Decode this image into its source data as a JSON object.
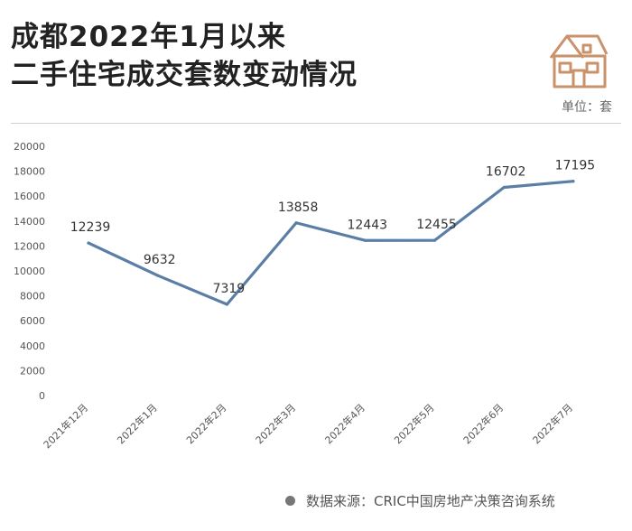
{
  "title_line1": "成都2022年1月以来",
  "title_line2": "二手住宅成交套数变动情况",
  "unit_label": "单位：套",
  "source_label": "数据来源：CRIC中国房地产决策咨询系统",
  "colors": {
    "line": "#5b7ea6",
    "logo": "#c9926a"
  },
  "chart_data": {
    "type": "line",
    "title": "成都2022年1月以来二手住宅成交套数变动情况",
    "unit": "单位：套",
    "categories": [
      "2021年12月",
      "2022年1月",
      "2022年2月",
      "2022年3月",
      "2022年4月",
      "2022年5月",
      "2022年6月",
      "2022年7月"
    ],
    "series": [
      {
        "values": [
          12239,
          9632,
          7319,
          13858,
          12443,
          12455,
          16702,
          17195
        ]
      }
    ],
    "ylim": [
      0,
      20000
    ],
    "yticks": [
      0,
      2000,
      4000,
      6000,
      8000,
      10000,
      12000,
      14000,
      16000,
      18000,
      20000
    ],
    "grid": false,
    "data_labels": true
  }
}
